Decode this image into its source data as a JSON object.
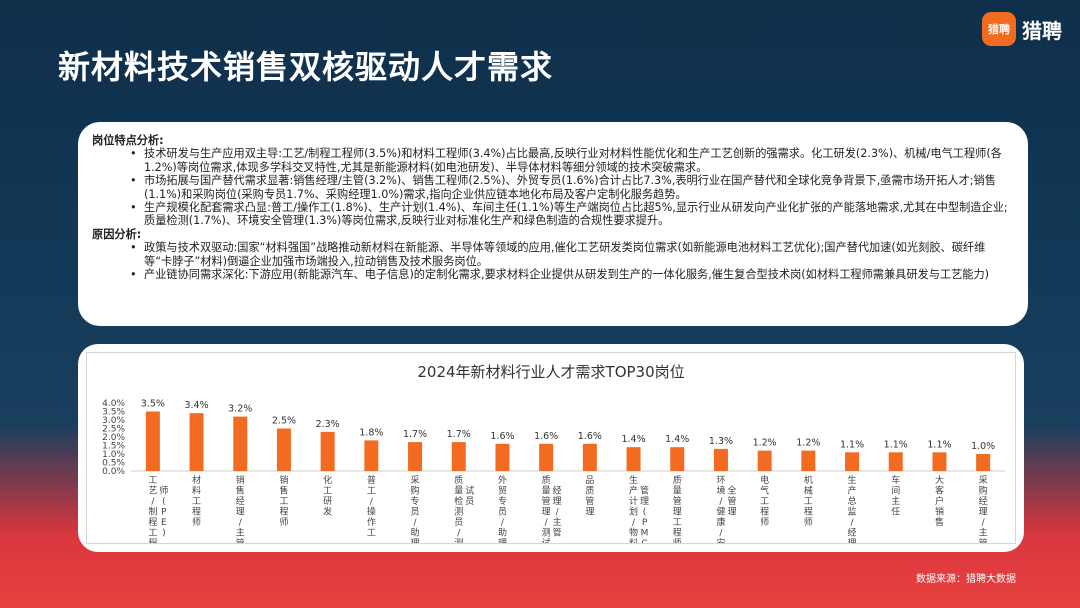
{
  "slide": {
    "title": "新材料技术销售双核驱动人才需求",
    "logo_mark": "猎聘",
    "logo_text": "猎聘",
    "source": "数据来源：猎聘大数据"
  },
  "analysis": {
    "features_title": "岗位特点分析:",
    "features": [
      "技术研发与生产应用双主导:工艺/制程工程师(3.5%)和材料工程师(3.4%)占比最高,反映行业对材料性能优化和生产工艺创新的强需求。化工研发(2.3%)、机械/电气工程师(各1.2%)等岗位需求,体现多学科交叉特性,尤其是新能源材料(如电池研发)、半导体材料等细分领域的技术突破需求。",
      "市场拓展与国产替代需求显著:销售经理/主管(3.2%)、销售工程师(2.5%)、外贸专员(1.6%)合计占比7.3%,表明行业在国产替代和全球化竞争背景下,亟需市场开拓人才;销售(1.1%)和采购岗位(采购专员1.7%、采购经理1.0%)需求,指向企业供应链本地化布局及客户定制化服务趋势。",
      "生产规模化配套需求凸显:普工/操作工(1.8%)、生产计划(1.4%)、车间主任(1.1%)等生产端岗位占比超5%,显示行业从研发向产业化扩张的产能落地需求,尤其在中型制造企业;质量检测(1.7%)、环境安全管理(1.3%)等岗位需求,反映行业对标准化生产和绿色制造的合规性要求提升。"
    ],
    "reasons_title": "原因分析:",
    "reasons": [
      "政策与技术双驱动:国家“材料强国”战略推动新材料在新能源、半导体等领域的应用,催化工艺研发类岗位需求(如新能源电池材料工艺优化);国产替代加速(如光刻胶、碳纤维等“卡脖子”材料)倒逼企业加强市场端投入,拉动销售及技术服务岗位。",
      "产业链协同需求深化:下游应用(新能源汽车、电子信息)的定制化需求,要求材料企业提供从研发到生产的一体化服务,催生复合型技术岗(如材料工程师需兼具研发与工艺能力)"
    ]
  },
  "chart_data": {
    "type": "bar",
    "title": "2024年新材料行业人才需求TOP30岗位",
    "categories": [
      "工艺/制程工程师(PE)",
      "材料工程师",
      "销售经理/主管",
      "销售工程师",
      "化工研发",
      "普工/操作工",
      "采购专员/助理",
      "质量检测员/测试员",
      "外贸专员/助理",
      "质量管理/测试经理/主管",
      "品质管理",
      "生产计划/物料管理(PMC)",
      "质量管理工程师",
      "环境/健康/安全管理",
      "电气工程师",
      "机械工程师",
      "生产总监/经理",
      "车间主任",
      "大客户销售",
      "采购经理/主管"
    ],
    "values": [
      3.5,
      3.4,
      3.2,
      2.5,
      2.3,
      1.8,
      1.7,
      1.7,
      1.6,
      1.6,
      1.6,
      1.4,
      1.4,
      1.3,
      1.2,
      1.2,
      1.1,
      1.1,
      1.1,
      1.0
    ],
    "data_labels": [
      "3.5%",
      "3.4%",
      "3.2%",
      "2.5%",
      "2.3%",
      "1.8%",
      "1.7%",
      "1.7%",
      "1.6%",
      "1.6%",
      "1.6%",
      "1.4%",
      "1.4%",
      "1.3%",
      "1.2%",
      "1.2%",
      "1.1%",
      "1.1%",
      "1.1%",
      "1.0%"
    ],
    "y_ticks": [
      "0.0%",
      "0.5%",
      "1.0%",
      "1.5%",
      "2.0%",
      "2.5%",
      "3.0%",
      "3.5%",
      "4.0%"
    ],
    "ylim": [
      0,
      4.0
    ],
    "bar_color": "#f26b21",
    "grid": false,
    "legend": "none"
  }
}
